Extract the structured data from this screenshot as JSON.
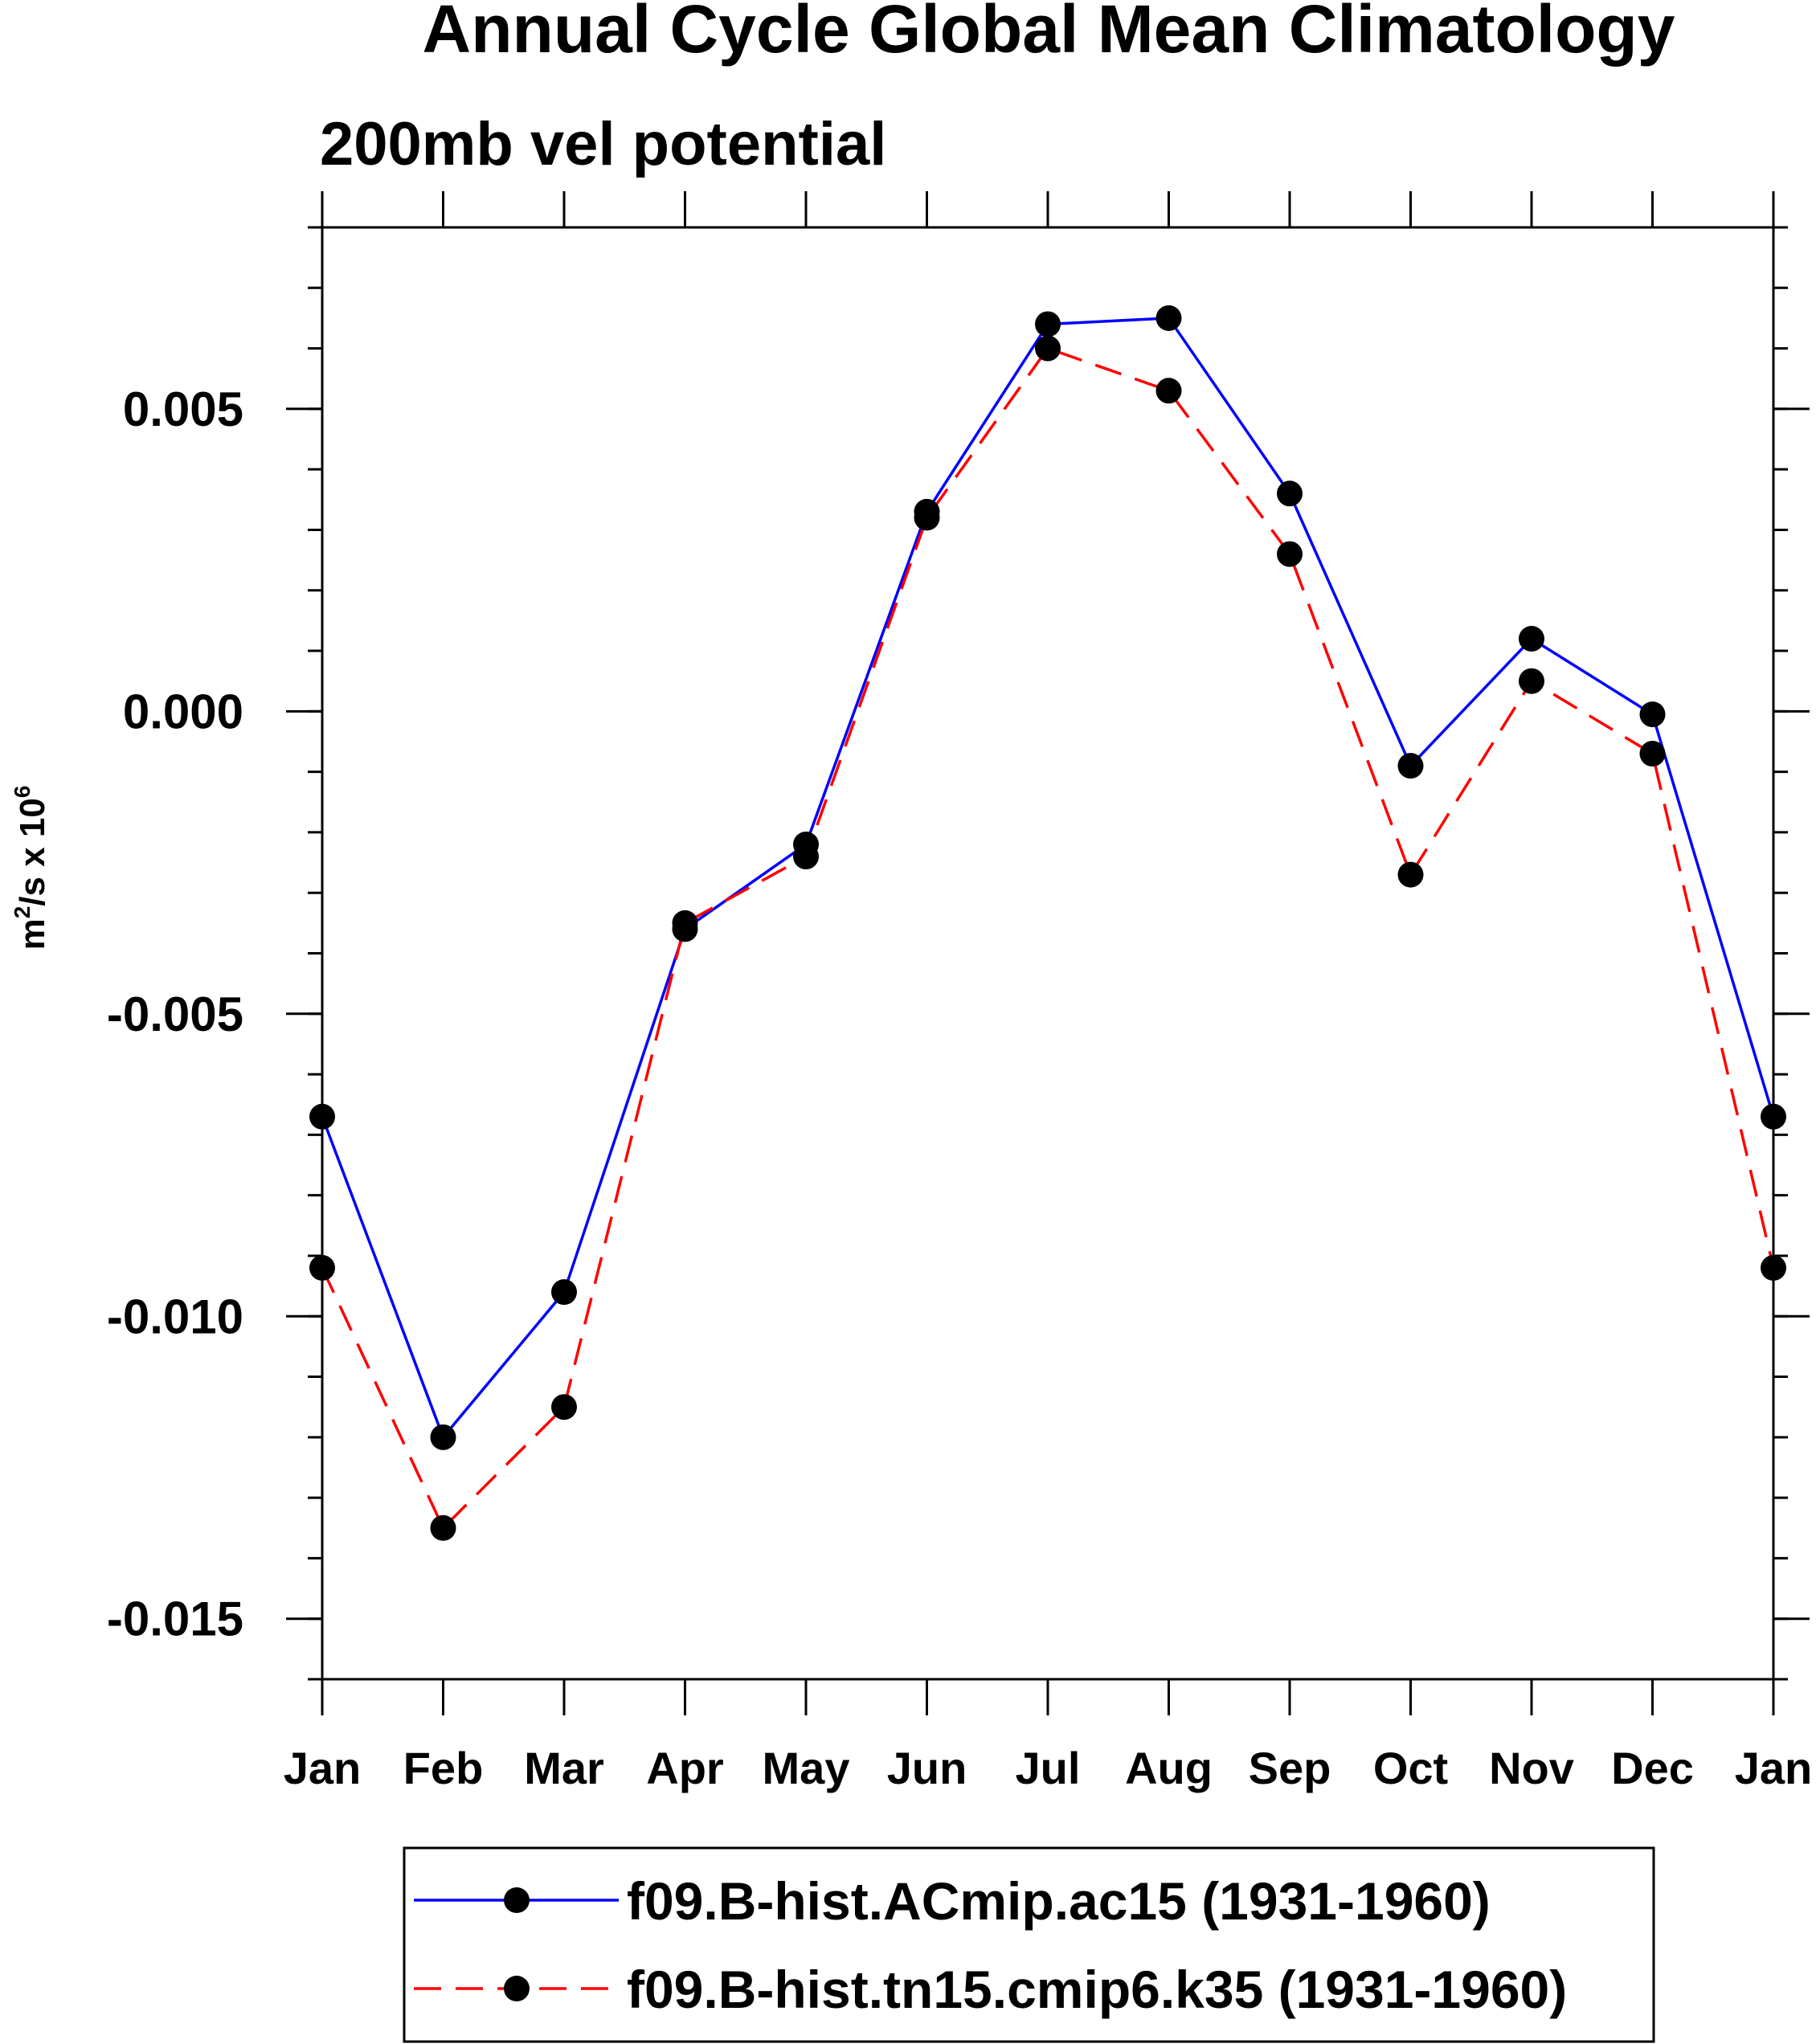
{
  "chart_data": {
    "type": "line",
    "title": "Annual Cycle Global Mean Climatology",
    "subtitle": "200mb vel potential",
    "ylabel_base": "m",
    "ylabel_sup": "2",
    "ylabel_mid": "/s x 10",
    "ylabel_exp": "6",
    "xlabel": "",
    "categories": [
      "Jan",
      "Feb",
      "Mar",
      "Apr",
      "May",
      "Jun",
      "Jul",
      "Aug",
      "Sep",
      "Oct",
      "Nov",
      "Dec",
      "Jan"
    ],
    "ylim": [
      -0.016,
      0.008
    ],
    "yticks": [
      0.005,
      0.0,
      -0.005,
      -0.01,
      -0.015
    ],
    "ytick_labels": [
      "0.005",
      "0.000",
      "-0.005",
      "-0.010",
      "-0.015"
    ],
    "minor_step": 0.001,
    "series": [
      {
        "name": "f09.B-hist.ACmip.ac15 (1931-1960)",
        "color": "#0000ff",
        "dash": "solid",
        "values": [
          -0.0067,
          -0.012,
          -0.0096,
          -0.0036,
          -0.0022,
          0.0033,
          0.0064,
          0.0065,
          0.0036,
          -0.0009,
          0.0012,
          -5e-05,
          -0.0067
        ]
      },
      {
        "name": "f09.B-hist.tn15.cmip6.k35 (1931-1960)",
        "color": "#ff0000",
        "dash": "dashed",
        "values": [
          -0.0092,
          -0.0135,
          -0.0115,
          -0.0035,
          -0.0024,
          0.0032,
          0.006,
          0.0053,
          0.0026,
          -0.0027,
          0.0005,
          -0.0007,
          -0.0092
        ]
      }
    ],
    "marker_color": "#000000",
    "legend_position": "bottom"
  }
}
